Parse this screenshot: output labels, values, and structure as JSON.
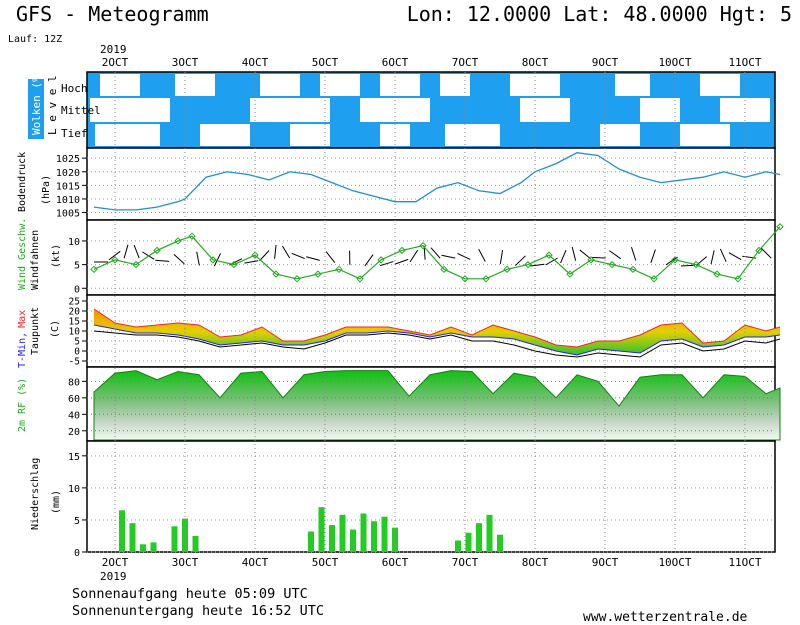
{
  "header": {
    "title": "GFS - Meteogramm",
    "coords": "Lon: 12.0000 Lat: 48.0000 Hgt: 5",
    "run": "Lauf: 12Z"
  },
  "year": "2019",
  "dates": [
    "2OCT",
    "3OCT",
    "4OCT",
    "5OCT",
    "6OCT",
    "7OCT",
    "8OCT",
    "9OCT",
    "10OCT",
    "11OCT"
  ],
  "panels": {
    "clouds": {
      "label": "Wolken (%)",
      "level_word": "L e v e l",
      "levels": [
        "Hoch",
        "Mittel",
        "Tief"
      ]
    },
    "pressure": {
      "label": "Bodendruck",
      "unit": "(hPa)",
      "ticks": [
        "1025",
        "1020",
        "1015",
        "1010",
        "1005"
      ]
    },
    "wind": {
      "label": "Wind Geschw.",
      "label2": "Windfahnen",
      "unit": "(kt)",
      "ticks": [
        "10",
        "5",
        "0"
      ]
    },
    "temp": {
      "label_tmin": "T-Min,",
      "label_max": "Max",
      "label2": "Taupunkt",
      "unit": "(C)",
      "ticks": [
        "25",
        "20",
        "15",
        "10",
        "5",
        "0",
        "-5"
      ]
    },
    "humidity": {
      "label": "2m RF (%)",
      "ticks": [
        "80",
        "60",
        "40",
        "20"
      ]
    },
    "precip": {
      "label": "Niederschlag",
      "unit": "(mm)",
      "ticks": [
        "15",
        "10",
        "5",
        "0"
      ]
    }
  },
  "footer": {
    "sunrise": "Sonnenaufgang heute 05:09 UTC",
    "sunset": "Sonnenuntergang heute 16:52 UTC",
    "site": "www.wetterzentrale.de"
  },
  "colors": {
    "sky": "#1e9ff0",
    "pressure": "#1e90d0",
    "wind": "#22aa22",
    "tmax": "#ff2020",
    "tmin": "#2020ff",
    "humidity": "#1faa1f",
    "precip": "#22cc22"
  },
  "chart_data": [
    {
      "type": "line",
      "title": "Bodendruck",
      "ylabel": "(hPa)",
      "x_days": [
        1.7,
        2.0,
        2.3,
        2.6,
        2.9,
        3.0,
        3.3,
        3.6,
        3.9,
        4.2,
        4.5,
        4.8,
        5.1,
        5.4,
        5.7,
        6.0,
        6.3,
        6.6,
        6.9,
        7.2,
        7.5,
        7.8,
        8.0,
        8.3,
        8.6,
        8.9,
        9.2,
        9.5,
        9.8,
        10.1,
        10.4,
        10.7,
        11.0,
        11.3,
        11.5
      ],
      "values": [
        1007,
        1006,
        1006,
        1007,
        1009,
        1010,
        1018,
        1020,
        1019,
        1017,
        1020,
        1019,
        1016,
        1013,
        1011,
        1009,
        1009,
        1014,
        1016,
        1013,
        1012,
        1016,
        1020,
        1023,
        1027,
        1026,
        1021,
        1018,
        1016,
        1017,
        1018,
        1020,
        1018,
        1020,
        1019
      ],
      "ylim": [
        1003,
        1028
      ]
    },
    {
      "type": "line",
      "title": "Wind Geschw.",
      "ylabel": "(kt)",
      "series": [
        {
          "name": "Wind Geschw.",
          "x_days": [
            1.7,
            2.0,
            2.3,
            2.6,
            2.9,
            3.1,
            3.4,
            3.7,
            4.0,
            4.3,
            4.6,
            4.9,
            5.2,
            5.5,
            5.8,
            6.1,
            6.4,
            6.7,
            7.0,
            7.3,
            7.6,
            7.9,
            8.2,
            8.5,
            8.8,
            9.1,
            9.4,
            9.7,
            10.0,
            10.3,
            10.6,
            10.9,
            11.2,
            11.5
          ],
          "values": [
            4,
            6,
            5,
            8,
            10,
            11,
            6,
            5,
            7,
            3,
            2,
            3,
            4,
            2,
            6,
            8,
            9,
            4,
            2,
            2,
            4,
            5,
            7,
            3,
            6,
            5,
            4,
            2,
            6,
            5,
            3,
            2,
            8,
            13
          ]
        }
      ],
      "ylim": [
        -1,
        14
      ]
    },
    {
      "type": "line",
      "title": "T-Min, Max",
      "ylabel": "(C)",
      "x_days": [
        1.7,
        2.0,
        2.3,
        2.6,
        2.9,
        3.2,
        3.5,
        3.8,
        4.1,
        4.4,
        4.7,
        5.0,
        5.3,
        5.6,
        5.9,
        6.2,
        6.5,
        6.8,
        7.1,
        7.4,
        7.7,
        8.0,
        8.3,
        8.6,
        8.9,
        9.2,
        9.5,
        9.8,
        10.1,
        10.4,
        10.7,
        11.0,
        11.3,
        11.5
      ],
      "series": [
        {
          "name": "Max",
          "values": [
            21,
            14,
            12,
            13,
            14,
            13,
            7,
            8,
            12,
            5,
            5,
            8,
            12,
            12,
            12,
            10,
            8,
            12,
            8,
            13,
            10,
            7,
            3,
            2,
            5,
            5,
            8,
            13,
            14,
            4,
            5,
            13,
            10,
            12
          ]
        },
        {
          "name": "T-Min",
          "values": [
            13,
            11,
            9,
            9,
            8,
            6,
            3,
            4,
            5,
            3,
            3,
            5,
            9,
            9,
            10,
            9,
            7,
            9,
            7,
            7,
            6,
            3,
            0,
            -2,
            1,
            0,
            -1,
            5,
            6,
            2,
            3,
            7,
            7,
            8
          ]
        },
        {
          "name": "Taupunkt",
          "values": [
            10,
            9,
            8,
            8,
            7,
            5,
            2,
            3,
            4,
            2,
            1,
            4,
            8,
            8,
            9,
            8,
            6,
            8,
            5,
            5,
            3,
            0,
            -2,
            -3,
            -1,
            -2,
            -3,
            3,
            4,
            0,
            1,
            5,
            4,
            6
          ]
        }
      ],
      "ylim": [
        -7,
        27
      ]
    },
    {
      "type": "area",
      "title": "2m RF (%)",
      "ylabel": "(%)",
      "x_days": [
        1.7,
        2.0,
        2.3,
        2.6,
        2.9,
        3.2,
        3.5,
        3.8,
        4.1,
        4.4,
        4.7,
        5.0,
        5.3,
        5.6,
        5.9,
        6.2,
        6.5,
        6.8,
        7.1,
        7.4,
        7.7,
        8.0,
        8.3,
        8.6,
        8.9,
        9.2,
        9.5,
        9.8,
        10.1,
        10.4,
        10.7,
        11.0,
        11.3,
        11.5
      ],
      "values": [
        67,
        90,
        93,
        82,
        92,
        88,
        60,
        90,
        92,
        60,
        88,
        92,
        93,
        93,
        93,
        62,
        88,
        93,
        92,
        65,
        90,
        85,
        60,
        88,
        80,
        50,
        85,
        88,
        88,
        60,
        88,
        86,
        65,
        72
      ],
      "ylim": [
        10,
        95
      ]
    },
    {
      "type": "bar",
      "title": "Niederschlag",
      "ylabel": "(mm)",
      "series": [
        {
          "name": "Niederschlag",
          "x_days": [
            2.1,
            2.25,
            2.4,
            2.55,
            2.85,
            3.0,
            3.15,
            4.8,
            4.95,
            5.1,
            5.25,
            5.4,
            5.55,
            5.7,
            5.85,
            6.0,
            6.9,
            7.05,
            7.2,
            7.35,
            7.5
          ],
          "values": [
            6.5,
            4.5,
            1.2,
            1.5,
            4.0,
            5.2,
            2.5,
            3.2,
            7.0,
            4.2,
            5.8,
            3.5,
            6.0,
            4.8,
            5.5,
            3.8,
            1.8,
            3.0,
            4.5,
            5.8,
            2.7
          ]
        }
      ],
      "ylim": [
        0,
        17
      ]
    }
  ]
}
